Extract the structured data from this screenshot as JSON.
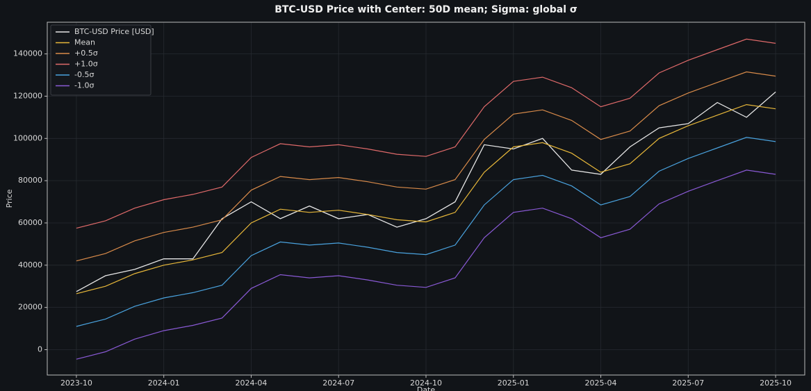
{
  "chart_data": {
    "type": "line",
    "title": "BTC-USD Price with Center: 50D mean; Sigma: global σ",
    "x_label": "Date",
    "y_label": "Price",
    "x": [
      "2023-10",
      "2023-11",
      "2023-12",
      "2024-01",
      "2024-02",
      "2024-03",
      "2024-04",
      "2024-05",
      "2024-06",
      "2024-07",
      "2024-08",
      "2024-09",
      "2024-10",
      "2024-11",
      "2024-12",
      "2025-01",
      "2025-02",
      "2025-03",
      "2025-04",
      "2025-05",
      "2025-06",
      "2025-07",
      "2025-08",
      "2025-09",
      "2025-10"
    ],
    "xlim": [
      "2023-09",
      "2025-11"
    ],
    "xticks": [
      "2023-10",
      "2024-01",
      "2024-04",
      "2024-07",
      "2024-10",
      "2025-01",
      "2025-04",
      "2025-07",
      "2025-10"
    ],
    "ylim": [
      -12000,
      155000
    ],
    "yticks": [
      0,
      20000,
      40000,
      60000,
      80000,
      100000,
      120000,
      140000
    ],
    "grid": true,
    "legend": "upper left",
    "series": [
      {
        "name": "BTC-USD Price [USD]",
        "color": "#e6e6e6",
        "values": [
          27500,
          35000,
          38000,
          43000,
          43000,
          62000,
          70000,
          62000,
          68000,
          62000,
          64000,
          58000,
          62000,
          70000,
          97000,
          95000,
          100000,
          85000,
          83000,
          96000,
          105000,
          107000,
          117000,
          110000,
          122000
        ]
      },
      {
        "name": "Mean",
        "color": "#e8b83a",
        "values": [
          26500,
          30000,
          36000,
          40000,
          42500,
          46000,
          60000,
          66500,
          65000,
          66000,
          64000,
          61500,
          60500,
          65000,
          84000,
          96000,
          98000,
          93000,
          84000,
          88000,
          100000,
          106000,
          111000,
          116000,
          114000
        ]
      },
      {
        "name": "+0.5σ",
        "color": "#d98b4a",
        "values": [
          42000,
          45500,
          51500,
          55500,
          58000,
          61500,
          75500,
          82000,
          80500,
          81500,
          79500,
          77000,
          76000,
          80500,
          99500,
          111500,
          113500,
          108500,
          99500,
          103500,
          115500,
          121500,
          126500,
          131500,
          129500
        ]
      },
      {
        "name": "+1.0σ",
        "color": "#e06a6a",
        "values": [
          57500,
          61000,
          67000,
          71000,
          73500,
          77000,
          91000,
          97500,
          96000,
          97000,
          95000,
          92500,
          91500,
          96000,
          115000,
          127000,
          129000,
          124000,
          115000,
          119000,
          131000,
          137000,
          142000,
          147000,
          145000
        ]
      },
      {
        "name": "-0.5σ",
        "color": "#4aa3df",
        "values": [
          11000,
          14500,
          20500,
          24500,
          27000,
          30500,
          44500,
          51000,
          49500,
          50500,
          48500,
          46000,
          45000,
          49500,
          68500,
          80500,
          82500,
          77500,
          68500,
          72500,
          84500,
          90500,
          95500,
          100500,
          98500
        ]
      },
      {
        "name": "-1.0σ",
        "color": "#8a5ad6",
        "values": [
          -4500,
          -1000,
          5000,
          9000,
          11500,
          15000,
          29000,
          35500,
          34000,
          35000,
          33000,
          30500,
          29500,
          34000,
          53000,
          65000,
          67000,
          62000,
          53000,
          57000,
          69000,
          75000,
          80000,
          85000,
          83000
        ]
      }
    ]
  }
}
